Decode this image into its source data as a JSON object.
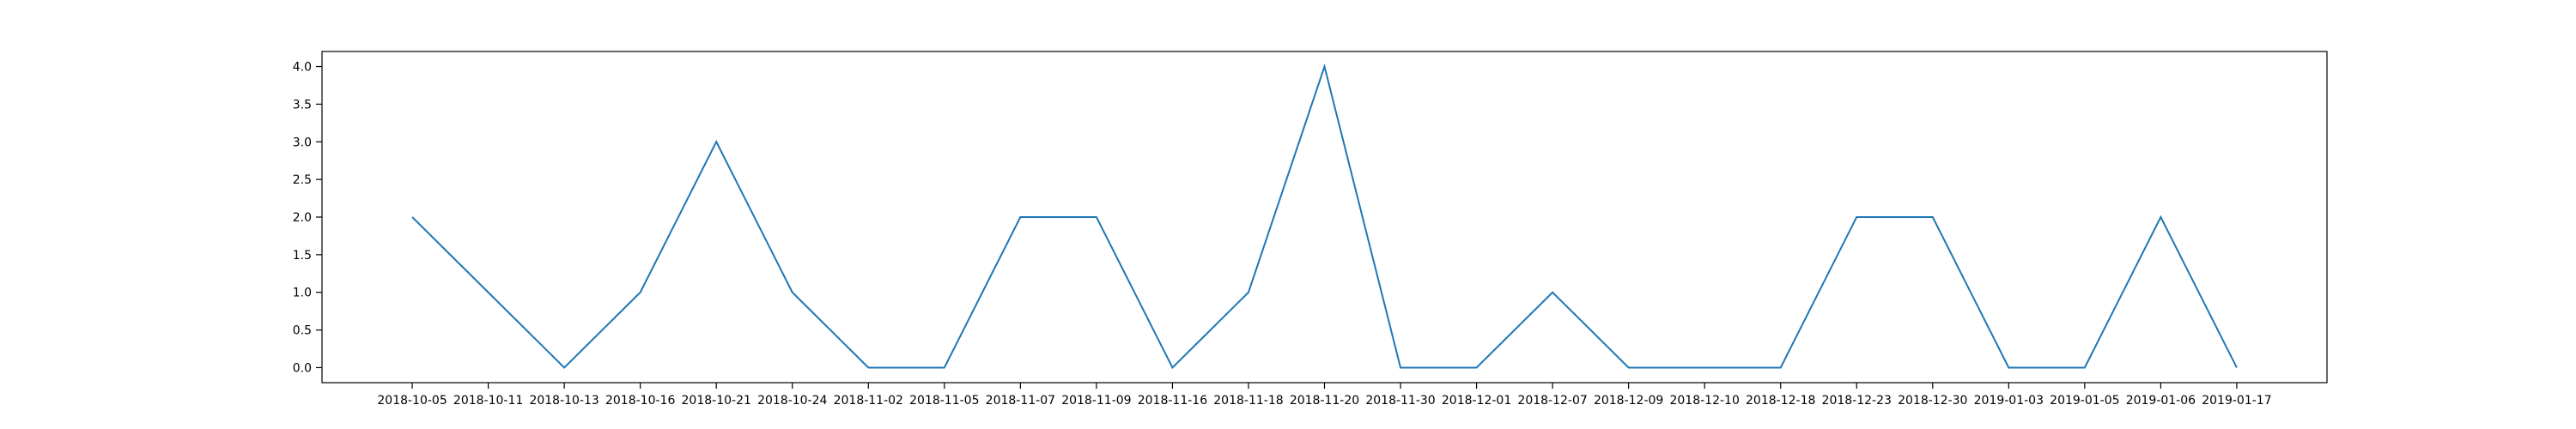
{
  "chart_data": {
    "type": "line",
    "categories": [
      "2018-10-05",
      "2018-10-11",
      "2018-10-13",
      "2018-10-16",
      "2018-10-21",
      "2018-10-24",
      "2018-11-02",
      "2018-11-05",
      "2018-11-07",
      "2018-11-09",
      "2018-11-16",
      "2018-11-18",
      "2018-11-20",
      "2018-11-30",
      "2018-12-01",
      "2018-12-07",
      "2018-12-09",
      "2018-12-10",
      "2018-12-18",
      "2018-12-23",
      "2018-12-30",
      "2019-01-03",
      "2019-01-05",
      "2019-01-06",
      "2019-01-17"
    ],
    "series": [
      {
        "values": [
          2,
          1,
          0,
          1,
          3,
          1,
          0,
          0,
          2,
          2,
          0,
          1,
          4,
          0,
          0,
          1,
          0,
          0,
          0,
          2,
          2,
          0,
          0,
          2,
          0
        ]
      }
    ],
    "yticks": [
      0.0,
      0.5,
      1.0,
      1.5,
      2.0,
      2.5,
      3.0,
      3.5,
      4.0
    ],
    "ytick_labels": [
      "0.0",
      "0.5",
      "1.0",
      "1.5",
      "2.0",
      "2.5",
      "3.0",
      "3.5",
      "4.0"
    ],
    "ylim": [
      -0.2,
      4.2
    ],
    "title": "",
    "xlabel": "",
    "ylabel": "",
    "grid": false,
    "line_color": "#1f77b4"
  }
}
